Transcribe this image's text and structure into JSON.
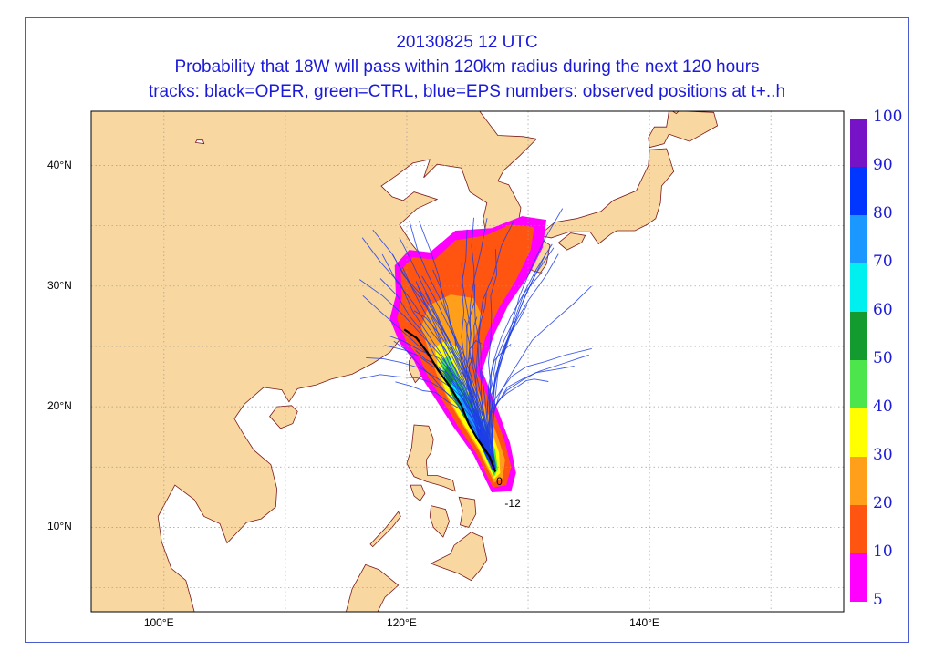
{
  "title": {
    "line1": "20130825 12 UTC",
    "line2": "Probability that 18W will pass within 120km radius during the next 120 hours",
    "line3": "tracks: black=OPER, green=CTRL, blue=EPS numbers: observed positions at t+..h"
  },
  "map": {
    "lon_range": [
      94,
      156
    ],
    "lat_range": [
      3,
      44.5
    ],
    "land_color": "#f8d8a0",
    "ocean_color": "#ffffff",
    "coast_color": "#7a1a1a",
    "grid_style": "dotted"
  },
  "lat_labels": [
    {
      "lat": 40,
      "text": "40°N"
    },
    {
      "lat": 30,
      "text": "30°N"
    },
    {
      "lat": 20,
      "text": "20°N"
    },
    {
      "lat": 10,
      "text": "10°N"
    }
  ],
  "lon_labels": [
    {
      "lon": 100,
      "text": "100°E"
    },
    {
      "lon": 120,
      "text": "120°E"
    },
    {
      "lon": 140,
      "text": "140°E"
    }
  ],
  "colorbar": {
    "levels": [
      {
        "label": "5",
        "color": "#ff00ff"
      },
      {
        "label": "10",
        "color": "#ff5511"
      },
      {
        "label": "20",
        "color": "#ff9f1a"
      },
      {
        "label": "30",
        "color": "#ffff00"
      },
      {
        "label": "40",
        "color": "#4ce64c"
      },
      {
        "label": "50",
        "color": "#139b2f"
      },
      {
        "label": "60",
        "color": "#00f0f0"
      },
      {
        "label": "70",
        "color": "#1a98ff"
      },
      {
        "label": "80",
        "color": "#0036ff"
      },
      {
        "label": "90",
        "color": "#7713c7"
      }
    ],
    "top_label": "100",
    "colors_meaning": "probability percent"
  },
  "observed_positions": [
    {
      "label": "0",
      "lon": 127.6,
      "lat": 13.8
    },
    {
      "label": "-12",
      "lon": 128.3,
      "lat": 12.0
    }
  ],
  "oper_track": [
    [
      127.3,
      14.6
    ],
    [
      126.8,
      15.9
    ],
    [
      125.9,
      17.2
    ],
    [
      125.1,
      18.6
    ],
    [
      124.5,
      20.1
    ],
    [
      123.6,
      21.6
    ],
    [
      122.6,
      23.0
    ],
    [
      121.7,
      24.5
    ],
    [
      120.8,
      25.7
    ],
    [
      119.8,
      26.4
    ]
  ]
}
